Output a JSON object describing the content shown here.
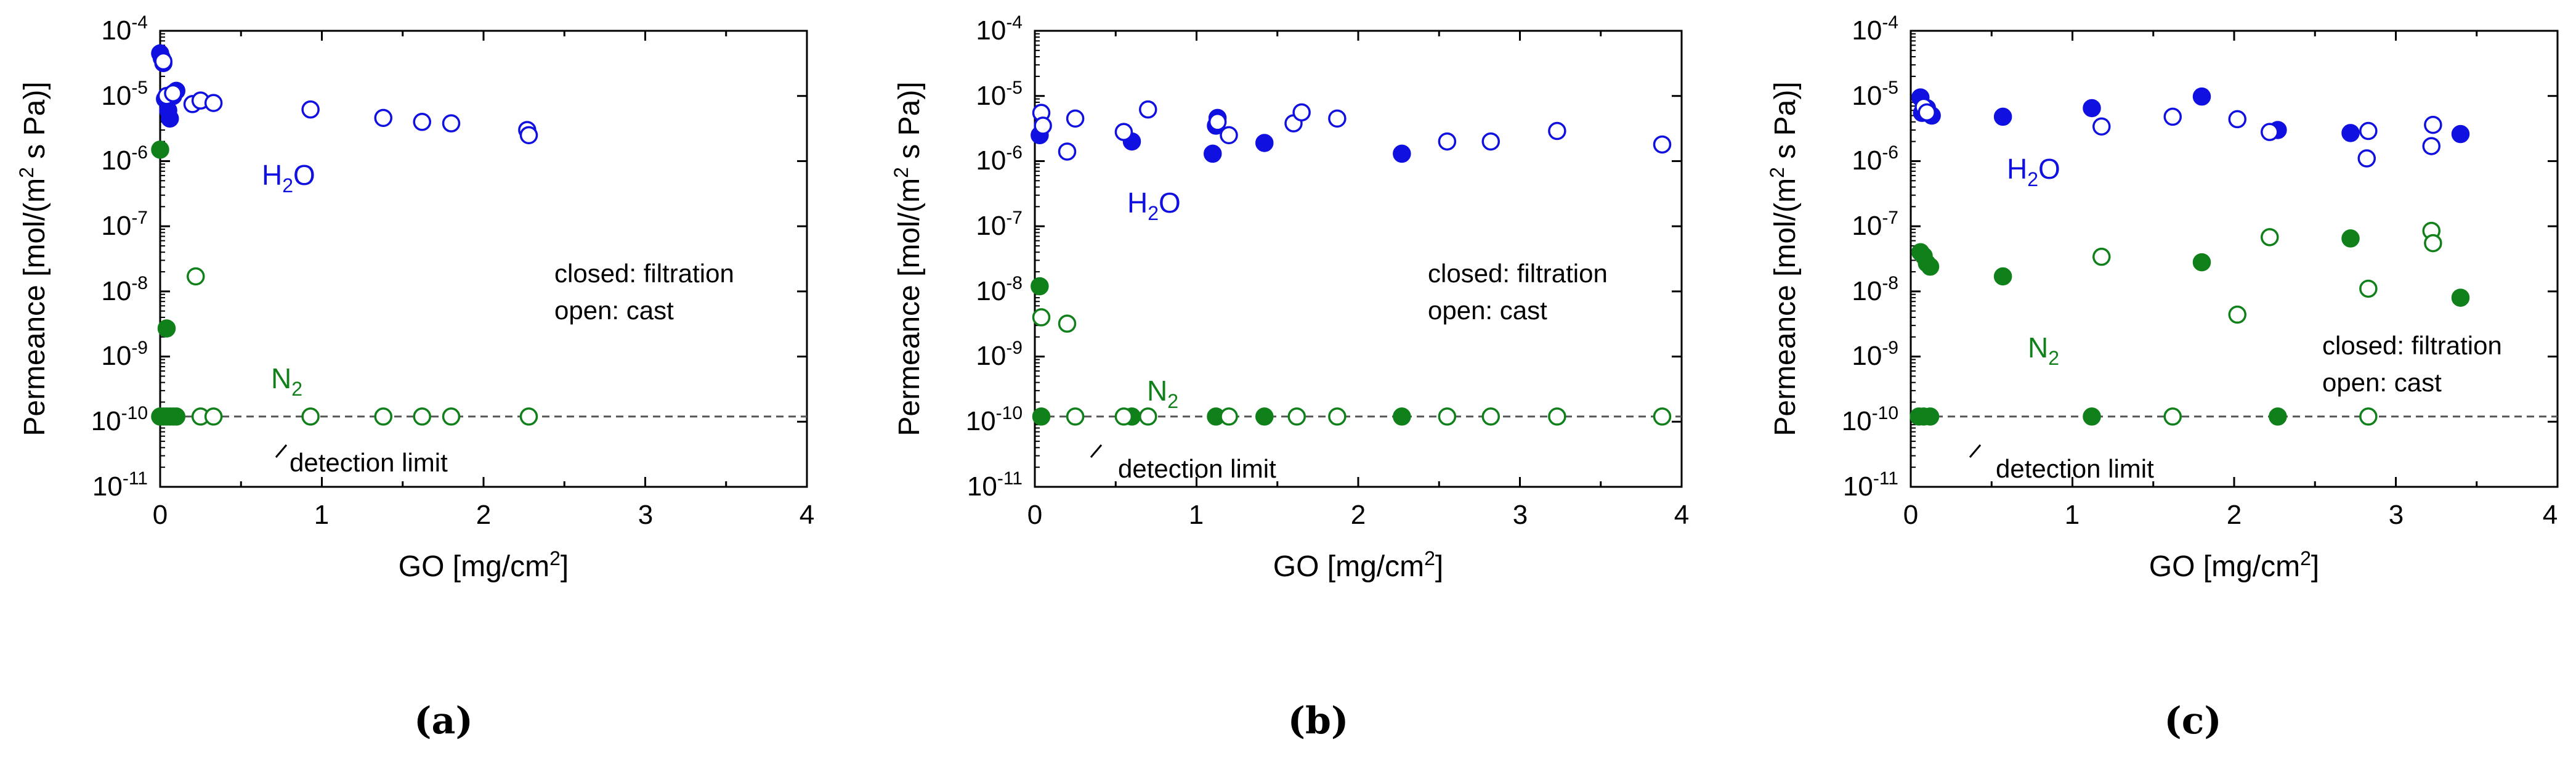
{
  "colors": {
    "h2o": "#1010e0",
    "n2": "#10801a",
    "axis": "#000000",
    "detection_line": "#555555"
  },
  "chart_data": [
    {
      "id": "a",
      "type": "scatter",
      "caption": "(a)",
      "xlabel": "GO [mg/cm",
      "xlabel_sup": "2",
      "xlabel_end": "]",
      "ylabel": "Permeance [mol/(m",
      "ylabel_sup": "2",
      "ylabel_end": " s Pa)]",
      "xlim": [
        0,
        4
      ],
      "xticks": [
        "0",
        "1",
        "2",
        "3",
        "4"
      ],
      "ylim_exp": [
        -11,
        -4
      ],
      "yticks": [
        {
          "base": "10",
          "exp": "-4"
        },
        {
          "base": "10",
          "exp": "-5"
        },
        {
          "base": "10",
          "exp": "-6"
        },
        {
          "base": "10",
          "exp": "-7"
        },
        {
          "base": "10",
          "exp": "-8"
        },
        {
          "base": "10",
          "exp": "-9"
        },
        {
          "base": "10",
          "exp": "-10"
        },
        {
          "base": "10",
          "exp": "-11"
        }
      ],
      "detection_limit": 1.2e-10,
      "detection_label": "detection limit",
      "note_line1": "closed: filtration",
      "note_line2": "open: cast",
      "label_h2o": "H",
      "label_h2o_sub": "2",
      "label_h2o_end": "O",
      "label_n2": "N",
      "label_n2_sub": "2",
      "series": [
        {
          "name": "H2O filtration",
          "color": "h2o",
          "filled": true,
          "points": [
            [
              0.0,
              4.5e-05
            ],
            [
              0.01,
              3.8e-05
            ],
            [
              0.02,
              3.2e-05
            ],
            [
              0.03,
              9e-06
            ],
            [
              0.05,
              6e-06
            ],
            [
              0.06,
              4.5e-06
            ],
            [
              0.08,
              1e-05
            ],
            [
              0.1,
              1.2e-05
            ]
          ]
        },
        {
          "name": "H2O cast",
          "color": "h2o",
          "filled": false,
          "points": [
            [
              0.02,
              3.4e-05
            ],
            [
              0.04,
              1e-05
            ],
            [
              0.08,
              1.1e-05
            ],
            [
              0.2,
              7.5e-06
            ],
            [
              0.25,
              8.5e-06
            ],
            [
              0.33,
              7.8e-06
            ],
            [
              0.93,
              6.2e-06
            ],
            [
              1.38,
              4.6e-06
            ],
            [
              1.62,
              4e-06
            ],
            [
              1.8,
              3.8e-06
            ],
            [
              2.27,
              3e-06
            ],
            [
              2.28,
              2.5e-06
            ]
          ]
        },
        {
          "name": "N2 filtration",
          "color": "n2",
          "filled": true,
          "points": [
            [
              0.0,
              1.5e-06
            ],
            [
              0.04,
              2.7e-09
            ],
            [
              0.0,
              1.2e-10
            ],
            [
              0.02,
              1.2e-10
            ],
            [
              0.04,
              1.2e-10
            ],
            [
              0.06,
              1.2e-10
            ],
            [
              0.08,
              1.2e-10
            ],
            [
              0.1,
              1.2e-10
            ]
          ]
        },
        {
          "name": "N2 cast",
          "color": "n2",
          "filled": false,
          "points": [
            [
              0.22,
              1.7e-08
            ],
            [
              0.25,
              1.2e-10
            ],
            [
              0.33,
              1.2e-10
            ],
            [
              0.93,
              1.2e-10
            ],
            [
              1.38,
              1.2e-10
            ],
            [
              1.62,
              1.2e-10
            ],
            [
              1.8,
              1.2e-10
            ],
            [
              2.28,
              1.2e-10
            ]
          ]
        }
      ]
    },
    {
      "id": "b",
      "type": "scatter",
      "caption": "(b)",
      "xlabel": "GO [mg/cm",
      "xlabel_sup": "2",
      "xlabel_end": "]",
      "ylabel": "Permeance [mol/(m",
      "ylabel_sup": "2",
      "ylabel_end": " s Pa)]",
      "xlim": [
        0,
        4
      ],
      "xticks": [
        "0",
        "1",
        "2",
        "3",
        "4"
      ],
      "ylim_exp": [
        -11,
        -4
      ],
      "yticks": [
        {
          "base": "10",
          "exp": "-4"
        },
        {
          "base": "10",
          "exp": "-5"
        },
        {
          "base": "10",
          "exp": "-6"
        },
        {
          "base": "10",
          "exp": "-7"
        },
        {
          "base": "10",
          "exp": "-8"
        },
        {
          "base": "10",
          "exp": "-9"
        },
        {
          "base": "10",
          "exp": "-10"
        },
        {
          "base": "10",
          "exp": "-11"
        }
      ],
      "detection_limit": 1.2e-10,
      "detection_label": "detection limit",
      "note_line1": "closed: filtration",
      "note_line2": "open: cast",
      "label_h2o": "H",
      "label_h2o_sub": "2",
      "label_h2o_end": "O",
      "label_n2": "N",
      "label_n2_sub": "2",
      "series": [
        {
          "name": "H2O filtration",
          "color": "h2o",
          "filled": true,
          "points": [
            [
              0.03,
              2.5e-06
            ],
            [
              0.6,
              2e-06
            ],
            [
              1.1,
              1.3e-06
            ],
            [
              1.12,
              3.5e-06
            ],
            [
              1.13,
              4.6e-06
            ],
            [
              1.42,
              1.9e-06
            ],
            [
              2.27,
              1.3e-06
            ]
          ]
        },
        {
          "name": "H2O cast",
          "color": "h2o",
          "filled": false,
          "points": [
            [
              0.04,
              5.5e-06
            ],
            [
              0.05,
              3.5e-06
            ],
            [
              0.2,
              1.4e-06
            ],
            [
              0.25,
              4.5e-06
            ],
            [
              0.55,
              2.8e-06
            ],
            [
              0.7,
              6.2e-06
            ],
            [
              1.13,
              4e-06
            ],
            [
              1.2,
              2.5e-06
            ],
            [
              1.6,
              3.8e-06
            ],
            [
              1.65,
              5.6e-06
            ],
            [
              1.87,
              4.5e-06
            ],
            [
              2.55,
              2e-06
            ],
            [
              2.82,
              2e-06
            ],
            [
              3.23,
              2.9e-06
            ],
            [
              3.88,
              1.8e-06
            ]
          ]
        },
        {
          "name": "N2 filtration",
          "color": "n2",
          "filled": true,
          "points": [
            [
              0.03,
              1.2e-08
            ],
            [
              0.04,
              1.2e-10
            ],
            [
              0.6,
              1.2e-10
            ],
            [
              1.12,
              1.2e-10
            ],
            [
              1.42,
              1.2e-10
            ],
            [
              2.27,
              1.2e-10
            ]
          ]
        },
        {
          "name": "N2 cast",
          "color": "n2",
          "filled": false,
          "points": [
            [
              0.04,
              4e-09
            ],
            [
              0.2,
              3.2e-09
            ],
            [
              0.25,
              1.2e-10
            ],
            [
              0.55,
              1.2e-10
            ],
            [
              0.7,
              1.2e-10
            ],
            [
              1.2,
              1.2e-10
            ],
            [
              1.62,
              1.2e-10
            ],
            [
              1.87,
              1.2e-10
            ],
            [
              2.55,
              1.2e-10
            ],
            [
              2.82,
              1.2e-10
            ],
            [
              3.23,
              1.2e-10
            ],
            [
              3.88,
              1.2e-10
            ]
          ]
        }
      ]
    },
    {
      "id": "c",
      "type": "scatter",
      "caption": "(c)",
      "xlabel": "GO [mg/cm",
      "xlabel_sup": "2",
      "xlabel_end": "]",
      "ylabel": "Permeance [mol/(m",
      "ylabel_sup": "2",
      "ylabel_end": " s Pa)]",
      "xlim": [
        0,
        4
      ],
      "xticks": [
        "0",
        "1",
        "2",
        "3",
        "4"
      ],
      "ylim_exp": [
        -11,
        -4
      ],
      "yticks": [
        {
          "base": "10",
          "exp": "-4"
        },
        {
          "base": "10",
          "exp": "-5"
        },
        {
          "base": "10",
          "exp": "-6"
        },
        {
          "base": "10",
          "exp": "-7"
        },
        {
          "base": "10",
          "exp": "-8"
        },
        {
          "base": "10",
          "exp": "-9"
        },
        {
          "base": "10",
          "exp": "-10"
        },
        {
          "base": "10",
          "exp": "-11"
        }
      ],
      "detection_limit": 1.2e-10,
      "detection_label": "detection limit",
      "note_line1": "closed: filtration",
      "note_line2": "open: cast",
      "label_h2o": "H",
      "label_h2o_sub": "2",
      "label_h2o_end": "O",
      "label_n2": "N",
      "label_n2_sub": "2",
      "series": [
        {
          "name": "H2O filtration",
          "color": "h2o",
          "filled": true,
          "points": [
            [
              0.06,
              9.5e-06
            ],
            [
              0.07,
              5.5e-06
            ],
            [
              0.1,
              6.5e-06
            ],
            [
              0.13,
              5e-06
            ],
            [
              0.57,
              4.8e-06
            ],
            [
              1.12,
              6.5e-06
            ],
            [
              1.8,
              9.8e-06
            ],
            [
              2.27,
              3e-06
            ],
            [
              2.72,
              2.7e-06
            ],
            [
              3.4,
              2.6e-06
            ]
          ]
        },
        {
          "name": "H2O cast",
          "color": "h2o",
          "filled": false,
          "points": [
            [
              0.08,
              6.8e-06
            ],
            [
              0.1,
              5.6e-06
            ],
            [
              1.18,
              3.4e-06
            ],
            [
              1.62,
              4.8e-06
            ],
            [
              2.02,
              4.4e-06
            ],
            [
              2.22,
              2.8e-06
            ],
            [
              2.82,
              1.1e-06
            ],
            [
              2.83,
              2.9e-06
            ],
            [
              3.22,
              1.7e-06
            ],
            [
              3.23,
              3.6e-06
            ]
          ]
        },
        {
          "name": "N2 filtration",
          "color": "n2",
          "filled": true,
          "points": [
            [
              0.06,
              4e-08
            ],
            [
              0.08,
              3.5e-08
            ],
            [
              0.1,
              2.7e-08
            ],
            [
              0.12,
              2.4e-08
            ],
            [
              0.57,
              1.7e-08
            ],
            [
              1.8,
              2.8e-08
            ],
            [
              2.72,
              6.5e-08
            ],
            [
              3.4,
              8e-09
            ],
            [
              0.05,
              1.2e-10
            ],
            [
              0.08,
              1.2e-10
            ],
            [
              0.12,
              1.2e-10
            ],
            [
              1.12,
              1.2e-10
            ],
            [
              2.27,
              1.2e-10
            ]
          ]
        },
        {
          "name": "N2 cast",
          "color": "n2",
          "filled": false,
          "points": [
            [
              1.18,
              3.4e-08
            ],
            [
              2.02,
              4.4e-09
            ],
            [
              2.22,
              6.8e-08
            ],
            [
              2.83,
              1.1e-08
            ],
            [
              3.22,
              8.5e-08
            ],
            [
              3.23,
              5.5e-08
            ],
            [
              1.62,
              1.2e-10
            ],
            [
              2.83,
              1.2e-10
            ]
          ]
        }
      ]
    }
  ]
}
